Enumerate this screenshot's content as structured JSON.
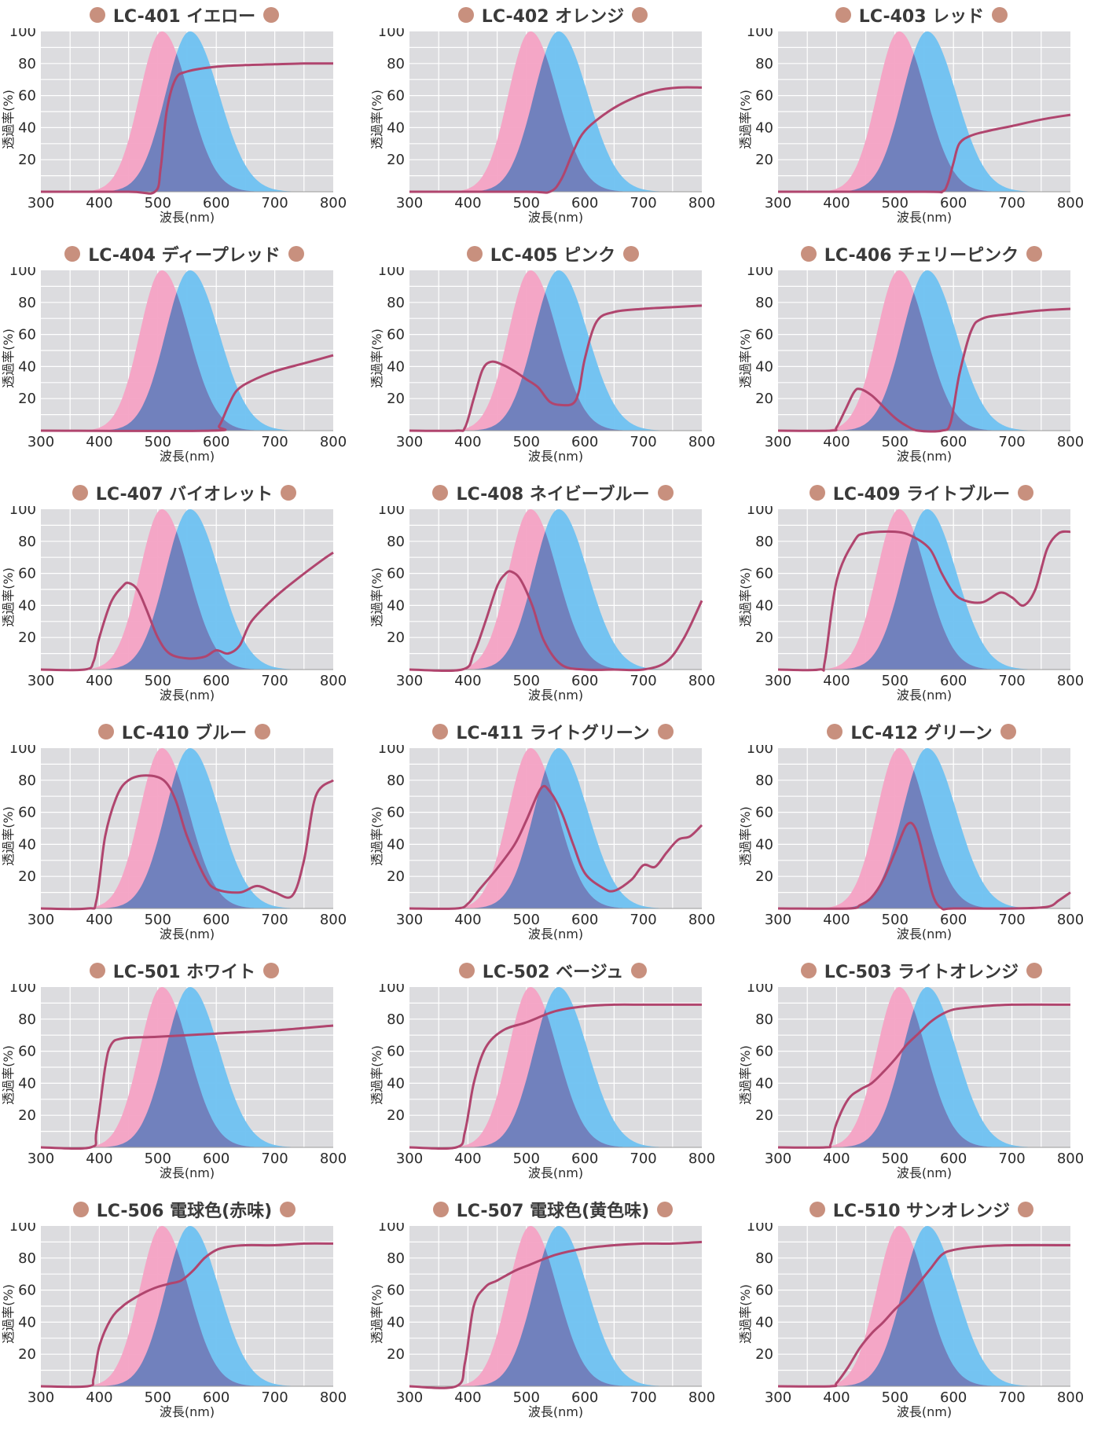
{
  "colors": {
    "background": "#dcdcdf",
    "red_band": "#f4a2c4",
    "blue_band": "#6ec1f2",
    "overlap": "#8a7fc0",
    "curve": "#b0456e",
    "dot": "#c8907e",
    "gridline": "#ffffff"
  },
  "chart_data": [
    {
      "type": "line",
      "title": "LC-401 イエロー",
      "xlabel": "波長(nm)",
      "ylabel": "透過率(%)",
      "xlim": [
        300,
        800
      ],
      "ylim": [
        0,
        100
      ],
      "x_ticks": [
        300,
        400,
        500,
        600,
        700,
        800
      ],
      "y_ticks": [
        20,
        40,
        60,
        80,
        100
      ],
      "series": [
        {
          "x": [
            300,
            450,
            495,
            505,
            515,
            530,
            550,
            600,
            650,
            700,
            750,
            800
          ],
          "values": [
            0,
            0,
            0,
            15,
            50,
            70,
            75,
            78,
            79,
            79.5,
            80,
            80
          ]
        }
      ]
    },
    {
      "type": "line",
      "title": "LC-402 オレンジ",
      "xlabel": "波長(nm)",
      "ylabel": "透過率(%)",
      "xlim": [
        300,
        800
      ],
      "ylim": [
        0,
        100
      ],
      "x_ticks": [
        300,
        400,
        500,
        600,
        700,
        800
      ],
      "y_ticks": [
        20,
        40,
        60,
        80,
        100
      ],
      "series": [
        {
          "x": [
            300,
            500,
            540,
            560,
            580,
            600,
            640,
            680,
            720,
            760,
            800
          ],
          "values": [
            0,
            0,
            0,
            8,
            25,
            38,
            50,
            58,
            63,
            65,
            65
          ]
        }
      ]
    },
    {
      "type": "line",
      "title": "LC-403 レッド",
      "xlabel": "波長(nm)",
      "ylabel": "透過率(%)",
      "xlim": [
        300,
        800
      ],
      "ylim": [
        0,
        100
      ],
      "x_ticks": [
        300,
        400,
        500,
        600,
        700,
        800
      ],
      "y_ticks": [
        20,
        40,
        60,
        80,
        100
      ],
      "series": [
        {
          "x": [
            300,
            550,
            580,
            590,
            600,
            610,
            630,
            660,
            700,
            750,
            800
          ],
          "values": [
            0,
            0,
            0,
            5,
            18,
            30,
            35,
            38,
            41,
            45,
            48
          ]
        }
      ]
    },
    {
      "type": "line",
      "title": "LC-404 ディープレッド",
      "xlabel": "波長(nm)",
      "ylabel": "透過率(%)",
      "xlim": [
        300,
        800
      ],
      "ylim": [
        0,
        100
      ],
      "x_ticks": [
        300,
        400,
        500,
        600,
        700,
        800
      ],
      "y_ticks": [
        20,
        40,
        60,
        80,
        100
      ],
      "series": [
        {
          "x": [
            300,
            590,
            605,
            620,
            635,
            660,
            700,
            750,
            800
          ],
          "values": [
            0,
            0,
            3,
            15,
            25,
            31,
            37,
            42,
            47
          ]
        }
      ]
    },
    {
      "type": "line",
      "title": "LC-405 ピンク",
      "xlabel": "波長(nm)",
      "ylabel": "透過率(%)",
      "xlim": [
        300,
        800
      ],
      "ylim": [
        0,
        100
      ],
      "x_ticks": [
        300,
        400,
        500,
        600,
        700,
        800
      ],
      "y_ticks": [
        20,
        40,
        60,
        80,
        100
      ],
      "series": [
        {
          "x": [
            300,
            380,
            395,
            410,
            425,
            440,
            460,
            480,
            500,
            520,
            540,
            560,
            580,
            590,
            600,
            620,
            650,
            700,
            750,
            800
          ],
          "values": [
            0,
            0,
            2,
            20,
            38,
            43,
            41,
            37,
            32,
            27,
            18,
            16,
            17,
            25,
            45,
            68,
            74,
            76,
            77,
            78
          ]
        }
      ]
    },
    {
      "type": "line",
      "title": "LC-406 チェリーピンク",
      "xlabel": "波長(nm)",
      "ylabel": "透過率(%)",
      "xlim": [
        300,
        800
      ],
      "ylim": [
        0,
        100
      ],
      "x_ticks": [
        300,
        400,
        500,
        600,
        700,
        800
      ],
      "y_ticks": [
        20,
        40,
        60,
        80,
        100
      ],
      "series": [
        {
          "x": [
            300,
            390,
            400,
            415,
            430,
            440,
            460,
            480,
            500,
            520,
            540,
            580,
            595,
            610,
            630,
            650,
            700,
            750,
            800
          ],
          "values": [
            0,
            0,
            2,
            13,
            24,
            26,
            22,
            15,
            8,
            3,
            0,
            0,
            5,
            35,
            62,
            70,
            73,
            75,
            76
          ]
        }
      ]
    },
    {
      "type": "line",
      "title": "LC-407 バイオレット",
      "xlabel": "波長(nm)",
      "ylabel": "透過率(%)",
      "xlim": [
        300,
        800
      ],
      "ylim": [
        0,
        100
      ],
      "x_ticks": [
        300,
        400,
        500,
        600,
        700,
        800
      ],
      "y_ticks": [
        20,
        40,
        60,
        80,
        100
      ],
      "series": [
        {
          "x": [
            300,
            375,
            390,
            400,
            420,
            440,
            450,
            465,
            480,
            500,
            520,
            550,
            580,
            600,
            620,
            640,
            660,
            700,
            740,
            780,
            800
          ],
          "values": [
            0,
            0,
            5,
            20,
            42,
            52,
            54,
            50,
            38,
            20,
            10,
            7,
            8,
            12,
            10,
            15,
            30,
            45,
            57,
            68,
            73
          ]
        }
      ]
    },
    {
      "type": "line",
      "title": "LC-408 ネイビーブルー",
      "xlabel": "波長(nm)",
      "ylabel": "透過率(%)",
      "xlim": [
        300,
        800
      ],
      "ylim": [
        0,
        100
      ],
      "x_ticks": [
        300,
        400,
        500,
        600,
        700,
        800
      ],
      "y_ticks": [
        20,
        40,
        60,
        80,
        100
      ],
      "series": [
        {
          "x": [
            300,
            390,
            410,
            430,
            450,
            465,
            475,
            490,
            510,
            530,
            560,
            600,
            650,
            700,
            740,
            770,
            800
          ],
          "values": [
            0,
            0,
            10,
            30,
            52,
            60,
            61,
            56,
            40,
            18,
            3,
            0,
            0,
            0,
            5,
            20,
            43
          ]
        }
      ]
    },
    {
      "type": "line",
      "title": "LC-409 ライトブルー",
      "xlabel": "波長(nm)",
      "ylabel": "透過率(%)",
      "xlim": [
        300,
        800
      ],
      "ylim": [
        0,
        100
      ],
      "x_ticks": [
        300,
        400,
        500,
        600,
        700,
        800
      ],
      "y_ticks": [
        20,
        40,
        60,
        80,
        100
      ],
      "series": [
        {
          "x": [
            300,
            370,
            380,
            400,
            430,
            450,
            500,
            530,
            560,
            580,
            600,
            620,
            650,
            680,
            700,
            720,
            740,
            760,
            780,
            800
          ],
          "values": [
            0,
            0,
            5,
            55,
            80,
            85,
            86,
            83,
            75,
            60,
            48,
            43,
            42,
            48,
            45,
            40,
            50,
            75,
            85,
            86
          ]
        }
      ]
    },
    {
      "type": "line",
      "title": "LC-410 ブルー",
      "xlabel": "波長(nm)",
      "ylabel": "透過率(%)",
      "xlim": [
        300,
        800
      ],
      "ylim": [
        0,
        100
      ],
      "x_ticks": [
        300,
        400,
        500,
        600,
        700,
        800
      ],
      "y_ticks": [
        20,
        40,
        60,
        80,
        100
      ],
      "series": [
        {
          "x": [
            300,
            380,
            395,
            410,
            430,
            450,
            480,
            510,
            530,
            550,
            580,
            600,
            640,
            670,
            700,
            730,
            750,
            770,
            800
          ],
          "values": [
            0,
            0,
            5,
            45,
            70,
            80,
            83,
            80,
            68,
            45,
            20,
            12,
            10,
            14,
            10,
            8,
            30,
            70,
            80
          ]
        }
      ]
    },
    {
      "type": "line",
      "title": "LC-411 ライトグリーン",
      "xlabel": "波長(nm)",
      "ylabel": "透過率(%)",
      "xlim": [
        300,
        800
      ],
      "ylim": [
        0,
        100
      ],
      "x_ticks": [
        300,
        400,
        500,
        600,
        700,
        800
      ],
      "y_ticks": [
        20,
        40,
        60,
        80,
        100
      ],
      "series": [
        {
          "x": [
            300,
            380,
            400,
            420,
            450,
            480,
            500,
            525,
            540,
            560,
            580,
            600,
            630,
            650,
            680,
            700,
            720,
            740,
            760,
            780,
            800
          ],
          "values": [
            0,
            0,
            3,
            12,
            25,
            40,
            55,
            75,
            73,
            60,
            40,
            22,
            13,
            11,
            18,
            27,
            26,
            35,
            43,
            45,
            52
          ]
        }
      ]
    },
    {
      "type": "line",
      "title": "LC-412 グリーン",
      "xlabel": "波長(nm)",
      "ylabel": "透過率(%)",
      "xlim": [
        300,
        800
      ],
      "ylim": [
        0,
        100
      ],
      "x_ticks": [
        300,
        400,
        500,
        600,
        700,
        800
      ],
      "y_ticks": [
        20,
        40,
        60,
        80,
        100
      ],
      "series": [
        {
          "x": [
            300,
            420,
            440,
            460,
            480,
            500,
            520,
            535,
            550,
            565,
            580,
            600,
            700,
            760,
            780,
            800
          ],
          "values": [
            0,
            0,
            2,
            7,
            18,
            35,
            52,
            50,
            30,
            8,
            0,
            0,
            0,
            1,
            5,
            10
          ]
        }
      ]
    },
    {
      "type": "line",
      "title": "LC-501 ホワイト",
      "xlabel": "波長(nm)",
      "ylabel": "透過率(%)",
      "xlim": [
        300,
        800
      ],
      "ylim": [
        0,
        100
      ],
      "x_ticks": [
        300,
        400,
        500,
        600,
        700,
        800
      ],
      "y_ticks": [
        20,
        40,
        60,
        80,
        100
      ],
      "series": [
        {
          "x": [
            300,
            385,
            395,
            410,
            420,
            440,
            500,
            600,
            700,
            800
          ],
          "values": [
            0,
            0,
            10,
            50,
            64,
            68,
            69,
            71,
            73,
            76
          ]
        }
      ]
    },
    {
      "type": "line",
      "title": "LC-502 ベージュ",
      "xlabel": "波長(nm)",
      "ylabel": "透過率(%)",
      "xlim": [
        300,
        800
      ],
      "ylim": [
        0,
        100
      ],
      "x_ticks": [
        300,
        400,
        500,
        600,
        700,
        800
      ],
      "y_ticks": [
        20,
        40,
        60,
        80,
        100
      ],
      "series": [
        {
          "x": [
            300,
            380,
            395,
            410,
            430,
            460,
            500,
            550,
            600,
            650,
            700,
            750,
            800
          ],
          "values": [
            0,
            0,
            10,
            40,
            62,
            73,
            78,
            85,
            88,
            89,
            89,
            89,
            89
          ]
        }
      ]
    },
    {
      "type": "line",
      "title": "LC-503 ライトオレンジ",
      "xlabel": "波長(nm)",
      "ylabel": "透過率(%)",
      "xlim": [
        300,
        800
      ],
      "ylim": [
        0,
        100
      ],
      "x_ticks": [
        300,
        400,
        500,
        600,
        700,
        800
      ],
      "y_ticks": [
        20,
        40,
        60,
        80,
        100
      ],
      "series": [
        {
          "x": [
            300,
            380,
            390,
            400,
            420,
            440,
            460,
            480,
            500,
            520,
            540,
            560,
            580,
            600,
            620,
            650,
            700,
            800
          ],
          "values": [
            0,
            0,
            2,
            15,
            30,
            36,
            40,
            47,
            55,
            64,
            71,
            78,
            83,
            86,
            87,
            88,
            89,
            89
          ]
        }
      ]
    },
    {
      "type": "line",
      "title": "LC-506 電球色(赤味)",
      "xlabel": "波長(nm)",
      "ylabel": "透過率(%)",
      "xlim": [
        300,
        800
      ],
      "ylim": [
        0,
        100
      ],
      "x_ticks": [
        300,
        400,
        500,
        600,
        700,
        800
      ],
      "y_ticks": [
        20,
        40,
        60,
        80,
        100
      ],
      "series": [
        {
          "x": [
            300,
            380,
            390,
            400,
            420,
            440,
            460,
            480,
            500,
            520,
            540,
            560,
            580,
            600,
            620,
            650,
            700,
            750,
            800
          ],
          "values": [
            0,
            0,
            5,
            25,
            42,
            50,
            55,
            59,
            62,
            64,
            66,
            72,
            80,
            85,
            87,
            88,
            88,
            89,
            89
          ]
        }
      ]
    },
    {
      "type": "line",
      "title": "LC-507 電球色(黄色味)",
      "xlabel": "波長(nm)",
      "ylabel": "透過率(%)",
      "xlim": [
        300,
        800
      ],
      "ylim": [
        0,
        100
      ],
      "x_ticks": [
        300,
        400,
        500,
        600,
        700,
        800
      ],
      "y_ticks": [
        20,
        40,
        60,
        80,
        100
      ],
      "series": [
        {
          "x": [
            300,
            380,
            395,
            410,
            430,
            450,
            480,
            500,
            550,
            600,
            650,
            700,
            750,
            800
          ],
          "values": [
            0,
            0,
            15,
            50,
            62,
            66,
            72,
            75,
            82,
            86,
            88,
            89,
            89,
            90
          ]
        }
      ]
    },
    {
      "type": "line",
      "title": "LC-510 サンオレンジ",
      "xlabel": "波長(nm)",
      "ylabel": "透過率(%)",
      "xlim": [
        300,
        800
      ],
      "ylim": [
        0,
        100
      ],
      "x_ticks": [
        300,
        400,
        500,
        600,
        700,
        800
      ],
      "y_ticks": [
        20,
        40,
        60,
        80,
        100
      ],
      "series": [
        {
          "x": [
            300,
            390,
            400,
            420,
            440,
            460,
            480,
            500,
            520,
            540,
            560,
            580,
            600,
            640,
            700,
            800
          ],
          "values": [
            0,
            0,
            2,
            12,
            24,
            33,
            40,
            48,
            55,
            64,
            73,
            82,
            85,
            87,
            88,
            88
          ]
        }
      ]
    }
  ]
}
